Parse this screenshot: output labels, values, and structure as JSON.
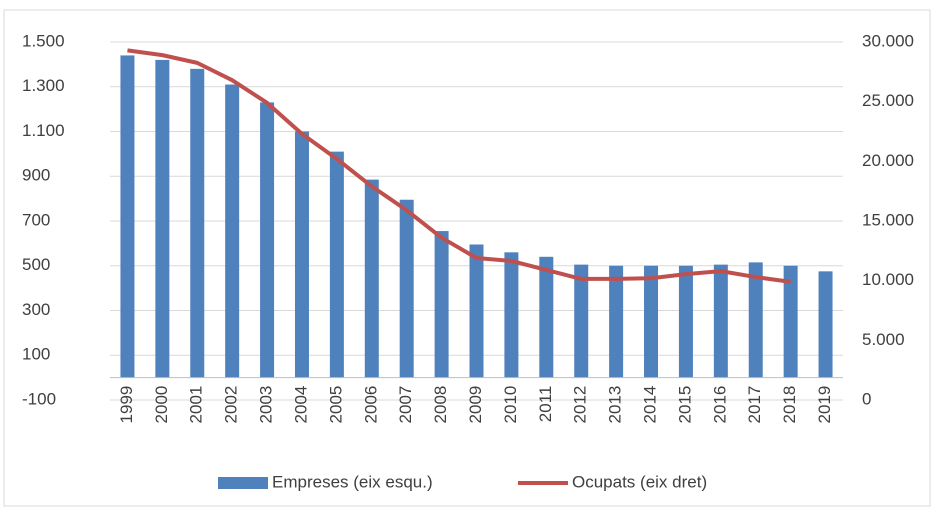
{
  "chart_data": {
    "type": "bar_line",
    "categories": [
      "1999",
      "2000",
      "2001",
      "2002",
      "2003",
      "2004",
      "2005",
      "2006",
      "2007",
      "2008",
      "2009",
      "2010",
      "2011",
      "2012",
      "2013",
      "2014",
      "2015",
      "2016",
      "2017",
      "2018",
      "2019"
    ],
    "series": [
      {
        "name": "Empreses (eix esqu.)",
        "color": "#4f81bd",
        "type": "bar",
        "axis": "y",
        "values": [
          1440,
          1420,
          1380,
          1310,
          1230,
          1100,
          1010,
          885,
          795,
          655,
          595,
          560,
          540,
          505,
          500,
          500,
          500,
          505,
          515,
          500,
          475
        ]
      },
      {
        "name": "Ocupats (eix dret)",
        "color": "#c0504d",
        "type": "line",
        "axis": "y2",
        "values": [
          29300,
          28900,
          28250,
          26800,
          24900,
          22300,
          20200,
          17900,
          15900,
          13600,
          11900,
          11650,
          10900,
          10150,
          10150,
          10200,
          10550,
          10800,
          10300,
          9900,
          null
        ]
      }
    ],
    "ylim": [
      -100,
      1500
    ],
    "yticks": [
      -100,
      100,
      300,
      500,
      700,
      900,
      {
        "value": 1100,
        "label": "1.100"
      },
      {
        "value": 1300,
        "label": "1.300"
      },
      {
        "value": 1500,
        "label": "1.500"
      }
    ],
    "y2lim": [
      0,
      30000
    ],
    "y2ticks": [
      0,
      {
        "value": 5000,
        "label": "5.000"
      },
      {
        "value": 10000,
        "label": "10.000"
      },
      {
        "value": 15000,
        "label": "15.000"
      },
      {
        "value": 20000,
        "label": "20.000"
      },
      {
        "value": 25000,
        "label": "25.000"
      },
      {
        "value": 30000,
        "label": "30.000"
      }
    ],
    "grid": true,
    "legend": "bottom"
  }
}
